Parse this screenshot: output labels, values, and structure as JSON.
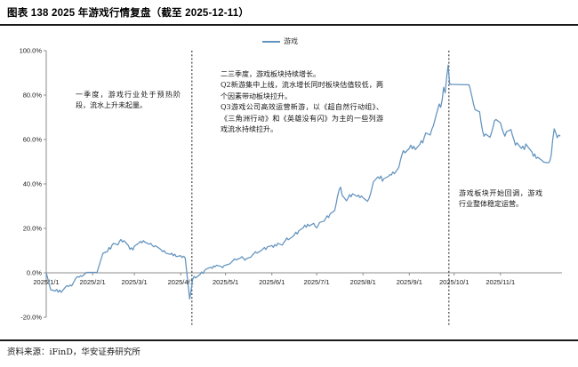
{
  "title": "图表 138 2025 年游戏行情复盘（截至 2025-12-11）",
  "legend": {
    "label": "游戏",
    "color": "#6293be"
  },
  "annotations": {
    "q1": "一季度，游戏行业处于预热阶段，流水上升未起量。",
    "q2q3": "二三季度，游戏板块持续增长。\nQ2新游集中上线，流水增长同时板块估值较低，两个因素带动板块拉升。\nQ3游戏公司高效运营新游，以《超自然行动组》、《三角洲行动》和《英雄没有闪》为主的一些列游戏流水持续拉升。",
    "q4": "游戏板块开始回调，游戏行业整体稳定运营。"
  },
  "footer": {
    "source": "资料来源：iFinD，华安证券研究所"
  },
  "chart_data": {
    "type": "line",
    "title": "2025 年游戏行情复盘（截至 2025-12-11）",
    "xlabel": "",
    "ylabel": "",
    "ylim": [
      -20,
      100
    ],
    "grid": "off",
    "legend_position": "top",
    "x_total_days": 344,
    "y_ticks": [
      {
        "value": 100,
        "label": "100.0%"
      },
      {
        "value": 80,
        "label": "80.0%"
      },
      {
        "value": 60,
        "label": "60.0%"
      },
      {
        "value": 40,
        "label": "40.0%"
      },
      {
        "value": 20,
        "label": "20.0%"
      },
      {
        "value": 0,
        "label": "0.0%"
      },
      {
        "value": -20,
        "label": "-20.0%"
      }
    ],
    "x_ticks": [
      {
        "day": 0,
        "label": "2025/1/1"
      },
      {
        "day": 31,
        "label": "2025/2/1"
      },
      {
        "day": 59,
        "label": "2025/3/1"
      },
      {
        "day": 90,
        "label": "2025/4/1"
      },
      {
        "day": 120,
        "label": "2025/5/1"
      },
      {
        "day": 151,
        "label": "2025/6/1"
      },
      {
        "day": 181,
        "label": "2025/7/1"
      },
      {
        "day": 212,
        "label": "2025/8/1"
      },
      {
        "day": 243,
        "label": "2025/9/1"
      },
      {
        "day": 273,
        "label": "2025/10/1"
      },
      {
        "day": 304,
        "label": "2025/11/1"
      }
    ],
    "event_lines": [
      {
        "day": 97.5,
        "style": "dashed",
        "note": "2025/4/7 板块急跌"
      },
      {
        "day": 269.5,
        "style": "dashed",
        "note": "2025/9 月末见顶"
      }
    ],
    "series": [
      {
        "name": "游戏",
        "color": "#6293be",
        "unit": "%",
        "points": [
          [
            0,
            0
          ],
          [
            1,
            -2.5
          ],
          [
            2,
            -5.2
          ],
          [
            3,
            -7.6
          ],
          [
            6,
            -8.2
          ],
          [
            7,
            -7.5
          ],
          [
            8,
            -8.7
          ],
          [
            9,
            -7.8
          ],
          [
            10,
            -8.8
          ],
          [
            13,
            -6.3
          ],
          [
            14,
            -5.8
          ],
          [
            15,
            -6.1
          ],
          [
            16,
            -5.5
          ],
          [
            17,
            -5.9
          ],
          [
            20,
            -2.2
          ],
          [
            21,
            -1.7
          ],
          [
            22,
            -2.0
          ],
          [
            23,
            -1.3
          ],
          [
            24,
            -1.6
          ],
          [
            26,
            -0.4
          ],
          [
            27,
            0.2
          ],
          [
            34,
            0.2
          ],
          [
            35,
            2.4
          ],
          [
            36,
            4.6
          ],
          [
            37,
            6.8
          ],
          [
            38,
            8.8
          ],
          [
            41,
            9.6
          ],
          [
            42,
            11.4
          ],
          [
            43,
            10.7
          ],
          [
            44,
            12.4
          ],
          [
            45,
            13.3
          ],
          [
            48,
            12.6
          ],
          [
            49,
            14.1
          ],
          [
            50,
            15.0
          ],
          [
            51,
            13.9
          ],
          [
            52,
            14.5
          ],
          [
            55,
            12.3
          ],
          [
            56,
            10.6
          ],
          [
            57,
            11.3
          ],
          [
            58,
            10.3
          ],
          [
            59,
            12.0
          ],
          [
            62,
            13.4
          ],
          [
            63,
            14.2
          ],
          [
            64,
            13.5
          ],
          [
            65,
            14.5
          ],
          [
            66,
            13.8
          ],
          [
            69,
            12.9
          ],
          [
            70,
            13.3
          ],
          [
            71,
            12.3
          ],
          [
            72,
            11.7
          ],
          [
            73,
            12.2
          ],
          [
            76,
            10.9
          ],
          [
            77,
            10.3
          ],
          [
            78,
            9.5
          ],
          [
            79,
            10.0
          ],
          [
            80,
            8.9
          ],
          [
            83,
            8.3
          ],
          [
            84,
            8.9
          ],
          [
            85,
            7.7
          ],
          [
            86,
            8.4
          ],
          [
            87,
            7.3
          ],
          [
            90,
            7.7
          ],
          [
            91,
            6.9
          ],
          [
            92,
            7.5
          ],
          [
            93,
            6.6
          ],
          [
            96,
            -11.8
          ],
          [
            97,
            -7.6
          ],
          [
            98,
            -2.9
          ],
          [
            99,
            -1.6
          ],
          [
            100,
            -2.3
          ],
          [
            103,
            -0.7
          ],
          [
            104,
            0.4
          ],
          [
            105,
            -0.3
          ],
          [
            106,
            1.1
          ],
          [
            107,
            1.7
          ],
          [
            110,
            2.5
          ],
          [
            111,
            2.0
          ],
          [
            112,
            3.1
          ],
          [
            113,
            2.7
          ],
          [
            114,
            3.4
          ],
          [
            117,
            2.9
          ],
          [
            118,
            2.3
          ],
          [
            119,
            3.2
          ],
          [
            123,
            4.1
          ],
          [
            124,
            4.8
          ],
          [
            125,
            5.5
          ],
          [
            126,
            6.3
          ],
          [
            127,
            5.8
          ],
          [
            130,
            6.7
          ],
          [
            131,
            7.3
          ],
          [
            132,
            6.5
          ],
          [
            133,
            5.7
          ],
          [
            134,
            6.4
          ],
          [
            137,
            7.1
          ],
          [
            138,
            8.0
          ],
          [
            139,
            8.7
          ],
          [
            140,
            9.5
          ],
          [
            141,
            8.9
          ],
          [
            144,
            10.1
          ],
          [
            145,
            10.7
          ],
          [
            146,
            11.4
          ],
          [
            147,
            10.5
          ],
          [
            148,
            11.7
          ],
          [
            151,
            12.3
          ],
          [
            152,
            11.5
          ],
          [
            153,
            12.7
          ],
          [
            154,
            12.1
          ],
          [
            155,
            13.3
          ],
          [
            158,
            12.5
          ],
          [
            159,
            13.7
          ],
          [
            160,
            14.5
          ],
          [
            161,
            15.7
          ],
          [
            162,
            14.9
          ],
          [
            165,
            16.3
          ],
          [
            166,
            17.1
          ],
          [
            167,
            18.3
          ],
          [
            168,
            17.5
          ],
          [
            169,
            18.9
          ],
          [
            172,
            20.3
          ],
          [
            173,
            21.5
          ],
          [
            174,
            20.5
          ],
          [
            175,
            21.9
          ],
          [
            176,
            21.1
          ],
          [
            179,
            22.3
          ],
          [
            180,
            21.0
          ],
          [
            181,
            20.2
          ],
          [
            182,
            21.4
          ],
          [
            183,
            22.7
          ],
          [
            186,
            23.3
          ],
          [
            187,
            24.5
          ],
          [
            188,
            25.7
          ],
          [
            189,
            24.9
          ],
          [
            190,
            26.5
          ],
          [
            193,
            28.0
          ],
          [
            194,
            31.0
          ],
          [
            195,
            34.5
          ],
          [
            196,
            37.2
          ],
          [
            197,
            38.6
          ],
          [
            198,
            35.0
          ],
          [
            201,
            32.4
          ],
          [
            202,
            33.6
          ],
          [
            203,
            35.2
          ],
          [
            204,
            34.2
          ],
          [
            205,
            35.6
          ],
          [
            208,
            34.4
          ],
          [
            209,
            35.0
          ],
          [
            210,
            33.8
          ],
          [
            211,
            34.6
          ],
          [
            212,
            33.8
          ],
          [
            215,
            32.2
          ],
          [
            216,
            33.4
          ],
          [
            217,
            35.4
          ],
          [
            218,
            38.2
          ],
          [
            219,
            41.0
          ],
          [
            222,
            43.2
          ],
          [
            223,
            42.4
          ],
          [
            224,
            43.6
          ],
          [
            225,
            41.2
          ],
          [
            226,
            42.4
          ],
          [
            229,
            43.4
          ],
          [
            230,
            44.2
          ],
          [
            231,
            44.0
          ],
          [
            232,
            45.4
          ],
          [
            233,
            44.6
          ],
          [
            236,
            47.5
          ],
          [
            237,
            50.5
          ],
          [
            238,
            53.0
          ],
          [
            239,
            55.0
          ],
          [
            240,
            54.0
          ],
          [
            243,
            56.0
          ],
          [
            244,
            57.5
          ],
          [
            245,
            55.8
          ],
          [
            246,
            57.0
          ],
          [
            247,
            55.5
          ],
          [
            250,
            57.8
          ],
          [
            251,
            59.5
          ],
          [
            252,
            58.5
          ],
          [
            253,
            61.0
          ],
          [
            254,
            63.0
          ],
          [
            257,
            62.0
          ],
          [
            258,
            64.5
          ],
          [
            259,
            66.0
          ],
          [
            260,
            68.5
          ],
          [
            261,
            71.0
          ],
          [
            262,
            73.5
          ],
          [
            263,
            76.0
          ],
          [
            264,
            74.5
          ],
          [
            265,
            78.0
          ],
          [
            266,
            83.5
          ],
          [
            267,
            81.0
          ],
          [
            268,
            88.0
          ],
          [
            269,
            93.5
          ],
          [
            270,
            85.0
          ],
          [
            271,
            84.8
          ],
          [
            274,
            84.8
          ],
          [
            277,
            84.7
          ],
          [
            280,
            84.7
          ],
          [
            283,
            84.6
          ],
          [
            284,
            82.0
          ],
          [
            285,
            79.0
          ],
          [
            286,
            76.0
          ],
          [
            287,
            73.5
          ],
          [
            290,
            72.5
          ],
          [
            291,
            68.0
          ],
          [
            292,
            64.0
          ],
          [
            293,
            61.5
          ],
          [
            294,
            62.5
          ],
          [
            297,
            61.0
          ],
          [
            298,
            63.0
          ],
          [
            299,
            65.5
          ],
          [
            300,
            68.5
          ],
          [
            301,
            69.0
          ],
          [
            304,
            67.5
          ],
          [
            305,
            65.0
          ],
          [
            306,
            63.0
          ],
          [
            307,
            61.5
          ],
          [
            308,
            63.5
          ],
          [
            311,
            64.5
          ],
          [
            312,
            62.0
          ],
          [
            313,
            60.0
          ],
          [
            314,
            57.5
          ],
          [
            315,
            58.5
          ],
          [
            318,
            56.0
          ],
          [
            319,
            57.0
          ],
          [
            320,
            55.5
          ],
          [
            321,
            58.0
          ],
          [
            322,
            57.0
          ],
          [
            325,
            54.5
          ],
          [
            326,
            52.5
          ],
          [
            327,
            53.5
          ],
          [
            328,
            51.5
          ],
          [
            329,
            52.0
          ],
          [
            332,
            50.5
          ],
          [
            333,
            49.8
          ],
          [
            336,
            49.5
          ],
          [
            337,
            50.2
          ],
          [
            338,
            53.0
          ],
          [
            339,
            60.0
          ],
          [
            340,
            64.8
          ],
          [
            341,
            63.0
          ],
          [
            342,
            60.8
          ],
          [
            343,
            62.0
          ],
          [
            344,
            61.5
          ]
        ]
      }
    ]
  }
}
